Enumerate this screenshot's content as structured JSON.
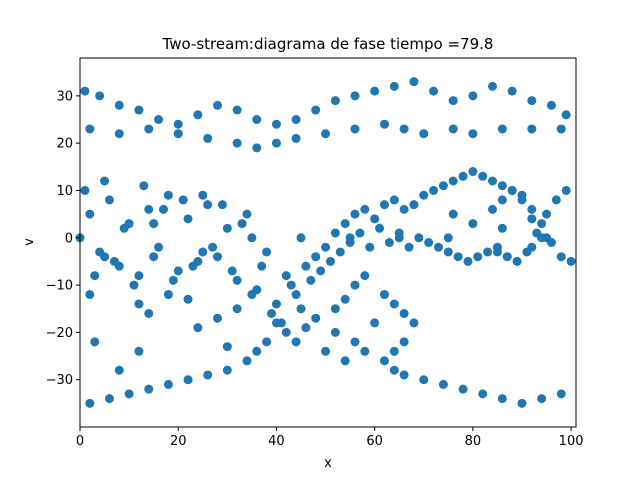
{
  "chart_data": {
    "type": "scatter",
    "title": "Two-stream:diagrama de fase  tiempo =79.8",
    "xlabel": "x",
    "ylabel": "v",
    "xlim": [
      0,
      101
    ],
    "ylim": [
      -40,
      38
    ],
    "xticks": [
      0,
      20,
      40,
      60,
      80,
      100
    ],
    "yticks": [
      -30,
      -20,
      -10,
      0,
      10,
      20,
      30
    ],
    "xtick_labels": [
      "0",
      "20",
      "40",
      "60",
      "80",
      "100"
    ],
    "ytick_labels": [
      "−30",
      "−20",
      "−10",
      "0",
      "10",
      "20",
      "30"
    ],
    "grid": false,
    "legend": "none",
    "marker_color": "#1f77b4",
    "series": [
      {
        "points": [
          [
            0,
            0
          ],
          [
            2,
            5
          ],
          [
            4,
            -3
          ],
          [
            6,
            8
          ],
          [
            8,
            -6
          ],
          [
            10,
            3
          ],
          [
            12,
            -8
          ],
          [
            14,
            6
          ],
          [
            16,
            -2
          ],
          [
            18,
            9
          ],
          [
            20,
            -7
          ],
          [
            22,
            4
          ],
          [
            24,
            -5
          ],
          [
            26,
            7
          ],
          [
            28,
            -4
          ],
          [
            30,
            2
          ],
          [
            32,
            -9
          ],
          [
            34,
            5
          ],
          [
            36,
            -11
          ],
          [
            38,
            -3
          ],
          [
            40,
            -14
          ],
          [
            42,
            -8
          ],
          [
            44,
            -12
          ],
          [
            46,
            -6
          ],
          [
            48,
            -4
          ],
          [
            50,
            -2
          ],
          [
            52,
            1
          ],
          [
            54,
            3
          ],
          [
            56,
            5
          ],
          [
            58,
            6
          ],
          [
            60,
            4
          ],
          [
            62,
            7
          ],
          [
            64,
            8
          ],
          [
            66,
            6
          ],
          [
            68,
            7
          ],
          [
            70,
            9
          ],
          [
            72,
            10
          ],
          [
            74,
            11
          ],
          [
            76,
            12
          ],
          [
            78,
            13
          ],
          [
            80,
            14
          ],
          [
            82,
            13
          ],
          [
            84,
            12
          ],
          [
            86,
            11
          ],
          [
            88,
            10
          ],
          [
            90,
            9
          ],
          [
            92,
            6
          ],
          [
            94,
            3
          ],
          [
            96,
            -1
          ],
          [
            98,
            -4
          ],
          [
            100,
            -5
          ],
          [
            1,
            10
          ],
          [
            3,
            -8
          ],
          [
            5,
            12
          ],
          [
            7,
            -5
          ],
          [
            9,
            2
          ],
          [
            11,
            -10
          ],
          [
            13,
            11
          ],
          [
            15,
            -4
          ],
          [
            17,
            6
          ],
          [
            19,
            -9
          ],
          [
            21,
            8
          ],
          [
            23,
            -6
          ],
          [
            25,
            9
          ],
          [
            27,
            -2
          ],
          [
            29,
            7
          ],
          [
            31,
            -7
          ],
          [
            33,
            3
          ],
          [
            35,
            -12
          ],
          [
            37,
            -6
          ],
          [
            39,
            -16
          ],
          [
            41,
            -18
          ],
          [
            43,
            -10
          ],
          [
            45,
            -15
          ],
          [
            47,
            -9
          ],
          [
            49,
            -7
          ],
          [
            51,
            -5
          ],
          [
            53,
            -3
          ],
          [
            55,
            -1
          ],
          [
            57,
            1
          ],
          [
            59,
            -2
          ],
          [
            61,
            2
          ],
          [
            63,
            -1
          ],
          [
            65,
            1
          ],
          [
            67,
            -2
          ],
          [
            69,
            0
          ],
          [
            71,
            -1
          ],
          [
            73,
            -2
          ],
          [
            75,
            -3
          ],
          [
            77,
            -4
          ],
          [
            79,
            -5
          ],
          [
            81,
            -4
          ],
          [
            83,
            -3
          ],
          [
            85,
            -2
          ],
          [
            87,
            -4
          ],
          [
            89,
            -5
          ],
          [
            91,
            -3
          ],
          [
            93,
            1
          ],
          [
            95,
            5
          ],
          [
            97,
            8
          ],
          [
            99,
            10
          ],
          [
            5,
            -4
          ],
          [
            15,
            3
          ],
          [
            25,
            -3
          ],
          [
            35,
            0
          ],
          [
            45,
            0
          ],
          [
            55,
            0
          ],
          [
            65,
            0
          ],
          [
            75,
            0
          ],
          [
            85,
            -3
          ],
          [
            95,
            0
          ],
          [
            2,
            -12
          ],
          [
            12,
            -14
          ],
          [
            22,
            -13
          ],
          [
            32,
            -15
          ],
          [
            42,
            -20
          ],
          [
            44,
            -22
          ],
          [
            46,
            -19
          ],
          [
            48,
            -17
          ],
          [
            38,
            -22
          ],
          [
            36,
            -24
          ],
          [
            34,
            -26
          ],
          [
            30,
            -28
          ],
          [
            26,
            -29
          ],
          [
            22,
            -30
          ],
          [
            18,
            -31
          ],
          [
            14,
            -32
          ],
          [
            10,
            -33
          ],
          [
            6,
            -34
          ],
          [
            2,
            -35
          ],
          [
            40,
            -18
          ],
          [
            52,
            -20
          ],
          [
            56,
            -22
          ],
          [
            58,
            -24
          ],
          [
            60,
            -18
          ],
          [
            62,
            -26
          ],
          [
            64,
            -28
          ],
          [
            66,
            -29
          ],
          [
            70,
            -30
          ],
          [
            74,
            -31
          ],
          [
            78,
            -32
          ],
          [
            82,
            -33
          ],
          [
            86,
            -34
          ],
          [
            90,
            -35
          ],
          [
            94,
            -34
          ],
          [
            98,
            -33
          ],
          [
            2,
            23
          ],
          [
            8,
            22
          ],
          [
            14,
            23
          ],
          [
            20,
            22
          ],
          [
            26,
            21
          ],
          [
            32,
            20
          ],
          [
            36,
            19
          ],
          [
            40,
            20
          ],
          [
            44,
            21
          ],
          [
            50,
            22
          ],
          [
            56,
            23
          ],
          [
            62,
            24
          ],
          [
            66,
            23
          ],
          [
            70,
            22
          ],
          [
            76,
            23
          ],
          [
            80,
            22
          ],
          [
            86,
            23
          ],
          [
            92,
            23
          ],
          [
            98,
            23
          ],
          [
            1,
            31
          ],
          [
            4,
            30
          ],
          [
            8,
            28
          ],
          [
            12,
            27
          ],
          [
            16,
            25
          ],
          [
            20,
            24
          ],
          [
            24,
            26
          ],
          [
            28,
            28
          ],
          [
            32,
            27
          ],
          [
            36,
            25
          ],
          [
            40,
            24
          ],
          [
            44,
            25
          ],
          [
            48,
            27
          ],
          [
            52,
            29
          ],
          [
            56,
            30
          ],
          [
            60,
            31
          ],
          [
            64,
            32
          ],
          [
            68,
            33
          ],
          [
            72,
            31
          ],
          [
            76,
            29
          ],
          [
            80,
            30
          ],
          [
            84,
            32
          ],
          [
            88,
            31
          ],
          [
            92,
            29
          ],
          [
            96,
            28
          ],
          [
            99,
            26
          ],
          [
            3,
            -22
          ],
          [
            8,
            -28
          ],
          [
            12,
            -24
          ],
          [
            14,
            -16
          ],
          [
            18,
            -12
          ],
          [
            24,
            -19
          ],
          [
            28,
            -17
          ],
          [
            30,
            -23
          ],
          [
            52,
            -15
          ],
          [
            54,
            -13
          ],
          [
            56,
            -10
          ],
          [
            58,
            -8
          ],
          [
            62,
            -12
          ],
          [
            64,
            -14
          ],
          [
            66,
            -16
          ],
          [
            68,
            -18
          ],
          [
            66,
            -22
          ],
          [
            64,
            -24
          ],
          [
            50,
            -24
          ],
          [
            54,
            -26
          ],
          [
            84,
            6
          ],
          [
            86,
            8
          ],
          [
            88,
            10
          ],
          [
            90,
            8
          ],
          [
            92,
            4
          ],
          [
            94,
            0
          ],
          [
            92,
            -2
          ],
          [
            86,
            2
          ],
          [
            80,
            3
          ],
          [
            76,
            5
          ]
        ]
      }
    ]
  }
}
